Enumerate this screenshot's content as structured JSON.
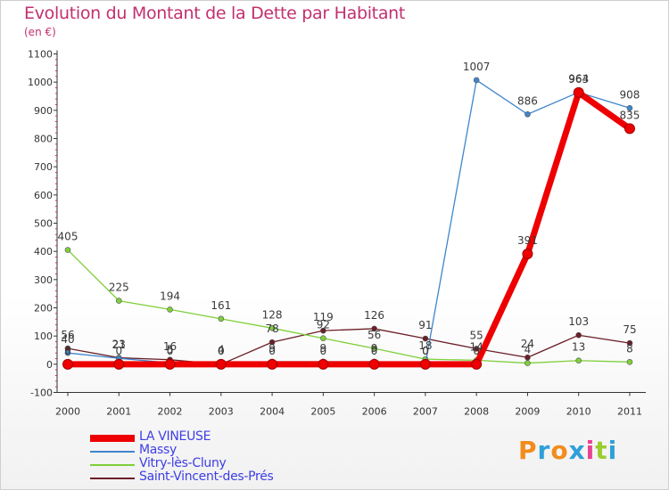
{
  "title": "Evolution du Montant de la Dette par Habitant",
  "subtitle": "(en €)",
  "logo": {
    "text": "Proxiti",
    "colors": [
      "#f28c1c",
      "#2f9fd8",
      "#f28c1c",
      "#2f9fd8",
      "#e84393",
      "#9acd32",
      "#2f9fd8"
    ]
  },
  "chart_data": {
    "type": "line",
    "x": [
      "2000",
      "2001",
      "2002",
      "2003",
      "2004",
      "2005",
      "2006",
      "2007",
      "2008",
      "2009",
      "2010",
      "2011"
    ],
    "ylim": [
      -100,
      1100
    ],
    "yticks": [
      "-100",
      "0",
      "100",
      "200",
      "300",
      "400",
      "500",
      "600",
      "700",
      "800",
      "900",
      "1000",
      "1100"
    ],
    "grid": false,
    "legend_position": "bottom-left",
    "series": [
      {
        "name": "LA VINEUSE",
        "color": "#ee0000",
        "values": [
          0,
          0,
          0,
          0,
          0,
          0,
          0,
          0,
          0,
          391,
          963,
          835
        ],
        "labels": [
          "0",
          "0",
          "0",
          "0",
          "0",
          "0",
          "0",
          "0",
          "0",
          "391",
          "963",
          "835"
        ]
      },
      {
        "name": "Massy",
        "color": "#3f86cc",
        "values": [
          40,
          21,
          5,
          4,
          9,
          9,
          9,
          0,
          1007,
          886,
          964,
          908
        ],
        "labels": [
          "40",
          "21",
          "5",
          "4",
          "9",
          "9",
          "9",
          "0",
          "1007",
          "886",
          "964",
          "908"
        ]
      },
      {
        "name": "Vitry-lès-Cluny",
        "color": "#7ecf3a",
        "values": [
          405,
          225,
          194,
          161,
          128,
          92,
          56,
          18,
          14,
          4,
          13,
          8
        ],
        "labels": [
          "405",
          "225",
          "194",
          "161",
          "128",
          "92",
          "56",
          "18",
          "14",
          "4",
          "13",
          "8"
        ]
      },
      {
        "name": "Saint-Vincent-des-Prés",
        "color": "#6b1f28",
        "values": [
          56,
          23,
          16,
          0,
          78,
          119,
          126,
          91,
          55,
          24,
          103,
          75
        ],
        "labels": [
          "56",
          "23",
          "16",
          "0",
          "78",
          "119",
          "126",
          "91",
          "55",
          "24",
          "103",
          "75"
        ]
      }
    ]
  }
}
